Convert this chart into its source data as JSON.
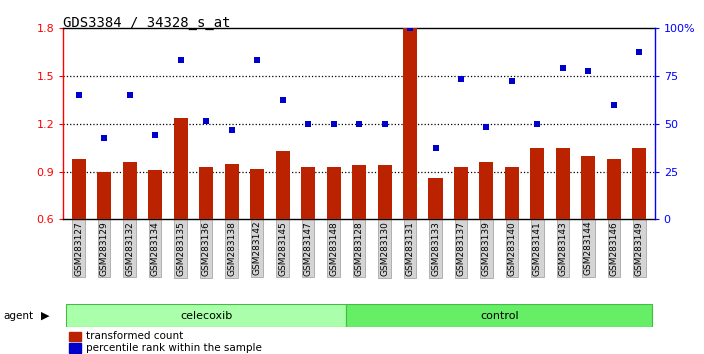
{
  "title": "GDS3384 / 34328_s_at",
  "samples": [
    "GSM283127",
    "GSM283129",
    "GSM283132",
    "GSM283134",
    "GSM283135",
    "GSM283136",
    "GSM283138",
    "GSM283142",
    "GSM283145",
    "GSM283147",
    "GSM283148",
    "GSM283128",
    "GSM283130",
    "GSM283131",
    "GSM283133",
    "GSM283137",
    "GSM283139",
    "GSM283140",
    "GSM283141",
    "GSM283143",
    "GSM283144",
    "GSM283146",
    "GSM283149"
  ],
  "bar_values": [
    0.98,
    0.9,
    0.96,
    0.91,
    1.24,
    0.93,
    0.95,
    0.92,
    1.03,
    0.93,
    0.93,
    0.94,
    0.94,
    1.8,
    0.86,
    0.93,
    0.96,
    0.93,
    1.05,
    1.05,
    1.0,
    0.98,
    1.05
  ],
  "scatter_values": [
    1.38,
    1.11,
    1.38,
    1.13,
    1.6,
    1.22,
    1.16,
    1.6,
    1.35,
    1.2,
    1.2,
    1.2,
    1.2,
    1.8,
    1.05,
    1.48,
    1.18,
    1.47,
    1.2,
    1.55,
    1.53,
    1.32,
    1.65
  ],
  "celecoxib_count": 11,
  "control_count": 12,
  "bar_color": "#bb2200",
  "scatter_color": "#0000cc",
  "ylim_left": [
    0.6,
    1.8
  ],
  "yticks_left": [
    0.6,
    0.9,
    1.2,
    1.5,
    1.8
  ],
  "yticks_right": [
    0,
    25,
    50,
    75,
    100
  ],
  "hlines": [
    0.9,
    1.2,
    1.5
  ],
  "celecoxib_color": "#aaffaa",
  "control_color": "#66ee66",
  "agent_label": "agent",
  "legend_bar_label": "transformed count",
  "legend_scatter_label": "percentile rank within the sample",
  "title_fontsize": 10,
  "bar_width": 0.55
}
